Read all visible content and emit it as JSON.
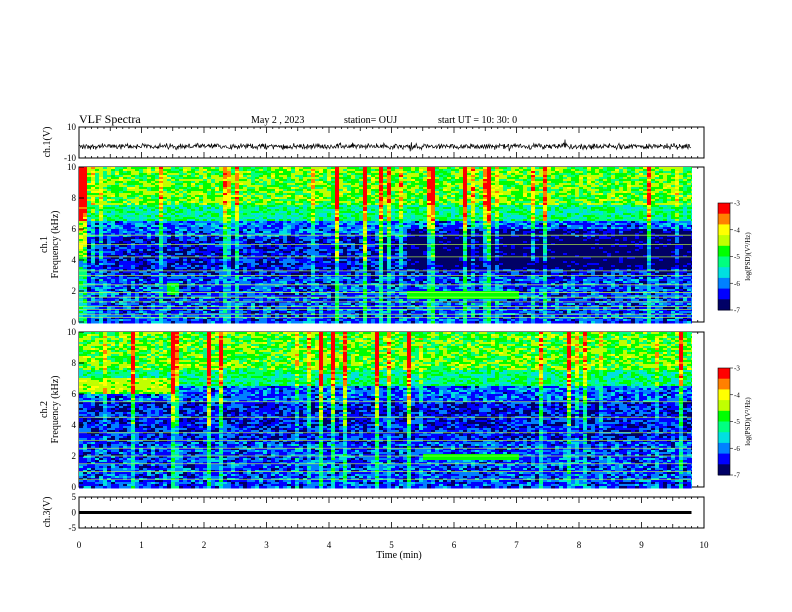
{
  "header": {
    "title": "VLF Spectra",
    "date": "May 2 , 2023",
    "station": "station= OUJ",
    "start": "start  UT  =  10: 30: 0"
  },
  "chart_data": [
    {
      "type": "line",
      "name": "waveform-ch1",
      "ylabel": "ch.1(V)",
      "ylim": [
        -10,
        10
      ],
      "yticks": [
        10,
        -10
      ],
      "xlim": [
        0,
        10
      ],
      "x_extent": [
        0,
        9.8
      ],
      "approx_level": -2.5,
      "approx_amplitude": 1.5
    },
    {
      "type": "heatmap",
      "name": "spectrogram-ch1",
      "ylabel_line1": "ch.1",
      "ylabel_line2": "Frequency (kHz)",
      "ylim": [
        0,
        10
      ],
      "yticks": [
        0,
        2,
        4,
        6,
        8,
        10
      ],
      "xlim": [
        0,
        10
      ],
      "x_extent": [
        0,
        9.8
      ],
      "colorbar": {
        "label": "log(PSD)(V²/Hz)",
        "range": [
          -7,
          -3
        ],
        "ticks": [
          -3,
          -4,
          -5,
          -6,
          -7
        ]
      },
      "bright_lines_khz": [
        0.3,
        0.5,
        0.8,
        1.0,
        1.3,
        1.6,
        1.9,
        2.4,
        3.0,
        3.3,
        4.2,
        5.0,
        5.6
      ],
      "events": [
        {
          "x": [
            5.2,
            7.0
          ],
          "y": [
            1.6,
            2.0
          ],
          "level": -4.8
        },
        {
          "x": [
            1.4,
            1.6
          ],
          "y": [
            1.8,
            2.6
          ],
          "level": -5.0
        }
      ]
    },
    {
      "type": "heatmap",
      "name": "spectrogram-ch2",
      "ylabel_line1": "ch.2",
      "ylabel_line2": "Frequency (kHz)",
      "ylim": [
        0,
        10
      ],
      "yticks": [
        0,
        2,
        4,
        6,
        8,
        10
      ],
      "xlim": [
        0,
        10
      ],
      "x_extent": [
        0,
        9.8
      ],
      "colorbar": {
        "label": "log(PSD)(V²/Hz)",
        "range": [
          -7,
          -3
        ],
        "ticks": [
          -3,
          -4,
          -5,
          -6,
          -7
        ]
      },
      "bright_lines_khz": [
        0.5,
        1.0,
        1.5,
        2.0,
        2.5,
        3.0,
        3.5,
        4.5,
        5.5
      ],
      "events": [
        {
          "x": [
            5.5,
            7.0
          ],
          "y": [
            1.8,
            2.2
          ],
          "level": -4.8
        },
        {
          "x": [
            0,
            1.5
          ],
          "y": [
            6.2,
            7.0
          ],
          "level": -4.5
        }
      ]
    },
    {
      "type": "line",
      "name": "waveform-ch3",
      "ylabel": "ch.3(V)",
      "ylim": [
        -5,
        5
      ],
      "yticks": [
        5,
        0,
        -5
      ],
      "xlim": [
        0,
        10
      ],
      "x_extent": [
        0,
        9.8
      ],
      "approx_level": 0
    }
  ],
  "xaxis": {
    "label": "Time (min)",
    "ticks": [
      0,
      1,
      2,
      3,
      4,
      5,
      6,
      7,
      8,
      9,
      10
    ],
    "tick_labels": [
      "0",
      "1",
      "2",
      "3",
      "4",
      "5",
      "6",
      "7",
      "8",
      "9",
      "10"
    ]
  },
  "colormap": [
    "#000066",
    "#0000ff",
    "#0080ff",
    "#00e0e0",
    "#00ff80",
    "#00ff00",
    "#c0ff00",
    "#ffff00",
    "#ff8000",
    "#ff0000",
    "#ffffff"
  ]
}
